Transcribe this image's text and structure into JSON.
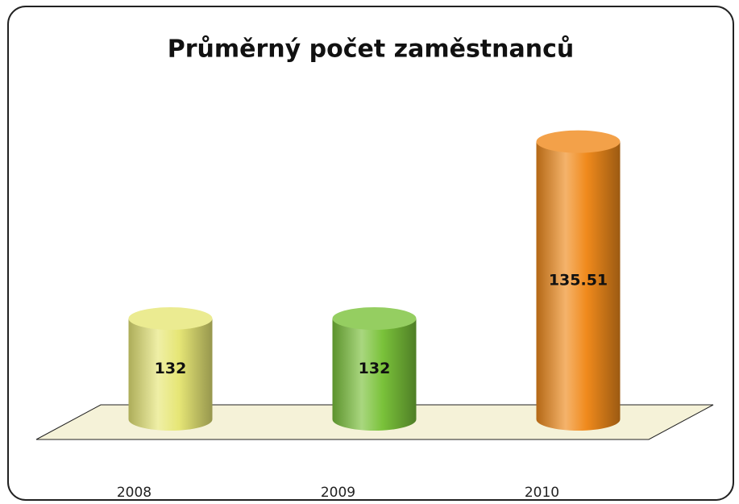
{
  "chart_data": {
    "type": "bar",
    "title": "Průměrný počet zaměstnanců",
    "categories": [
      "2008",
      "2009",
      "2010"
    ],
    "values": [
      132,
      132,
      135.51
    ],
    "colors": [
      "#e6e676",
      "#7ac23a",
      "#f08a1c"
    ],
    "ylim": [
      130,
      136
    ]
  }
}
